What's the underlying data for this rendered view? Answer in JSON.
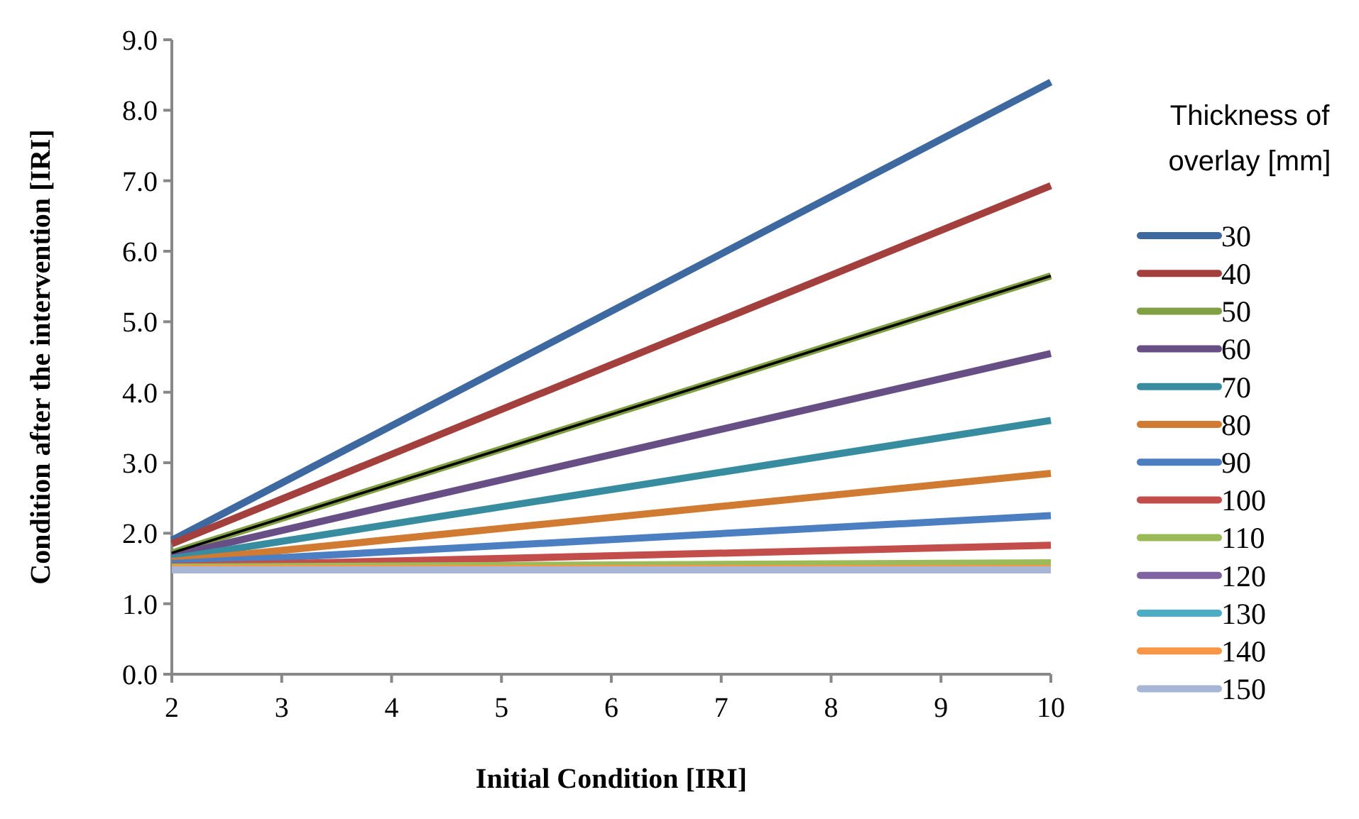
{
  "chart_data": {
    "type": "line",
    "xlabel": "Initial Condition [IRI]",
    "ylabel": "Condition after the intervention [IRI]",
    "legend_title": "Thickness of overlay [mm]",
    "legend": "right",
    "grid": false,
    "marker": "none",
    "line_style": "solid",
    "x": [
      2,
      10
    ],
    "xlim": [
      2,
      10
    ],
    "xticks": [
      2,
      3,
      4,
      5,
      6,
      7,
      8,
      9,
      10
    ],
    "ylim": [
      0,
      9
    ],
    "yticks": [
      {
        "value": 0,
        "label": "0.0"
      },
      {
        "value": 1,
        "label": "1.0"
      },
      {
        "value": 2,
        "label": "2.0"
      },
      {
        "value": 3,
        "label": "3.0"
      },
      {
        "value": 4,
        "label": "4.0"
      },
      {
        "value": 5,
        "label": "5.0"
      },
      {
        "value": 6,
        "label": "6.0"
      },
      {
        "value": 7,
        "label": "7.0"
      },
      {
        "value": 8,
        "label": "8.0"
      },
      {
        "value": 9,
        "label": "9.0"
      }
    ],
    "series": [
      {
        "name": "30",
        "color": "#3e68a0",
        "values": [
          1.9,
          8.4
        ]
      },
      {
        "name": "40",
        "color": "#a33f3c",
        "values": [
          1.85,
          6.93
        ]
      },
      {
        "name": "50",
        "color": "#81a044",
        "values": [
          1.72,
          5.65
        ]
      },
      {
        "name": "60",
        "color": "#674f86",
        "values": [
          1.68,
          4.55
        ]
      },
      {
        "name": "70",
        "color": "#378d9f",
        "values": [
          1.64,
          3.6
        ]
      },
      {
        "name": "80",
        "color": "#d07a32",
        "values": [
          1.6,
          2.85
        ]
      },
      {
        "name": "90",
        "color": "#4b7fc1",
        "values": [
          1.57,
          2.25
        ]
      },
      {
        "name": "100",
        "color": "#c34d4a",
        "values": [
          1.53,
          1.83
        ]
      },
      {
        "name": "110",
        "color": "#9bbb59",
        "values": [
          1.52,
          1.58
        ]
      },
      {
        "name": "120",
        "color": "#8064a2",
        "values": [
          null,
          null
        ]
      },
      {
        "name": "130",
        "color": "#4bacc6",
        "values": [
          null,
          null
        ]
      },
      {
        "name": "140",
        "color": "#f79646",
        "values": [
          1.5,
          1.5
        ]
      },
      {
        "name": "150",
        "color": "#a6b6d4",
        "values": [
          1.48,
          1.48
        ]
      },
      {
        "color": "#000000",
        "values": [
          1.72,
          5.65
        ]
      }
    ]
  }
}
